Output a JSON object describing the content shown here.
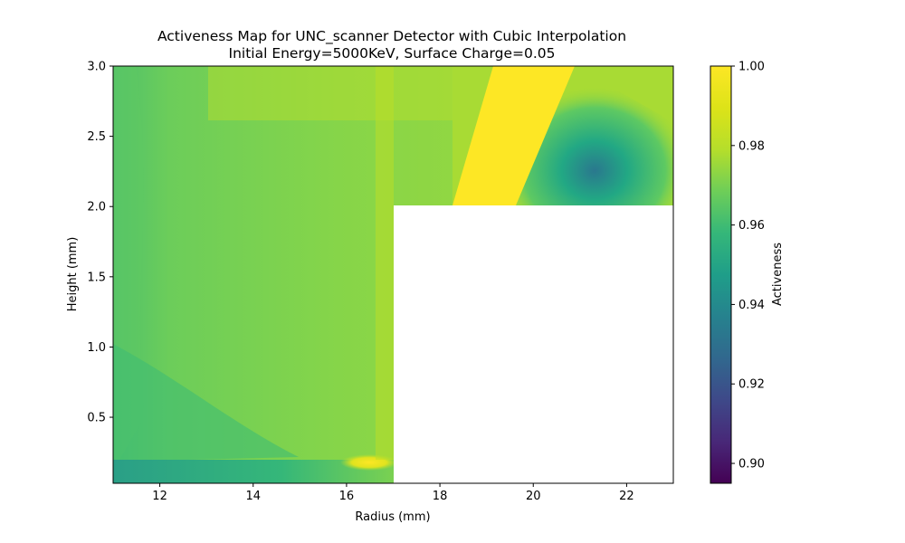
{
  "chart_data": {
    "type": "heatmap",
    "title": "Activeness Map for UNC_scanner Detector with Cubic Interpolation",
    "subtitle": "Initial Energy=5000KeV, Surface Charge=0.05",
    "xlabel": "Radius (mm)",
    "ylabel": "Height (mm)",
    "colorbar_label": "Activeness",
    "colormap": "viridis",
    "xlim": [
      11.0,
      23.0
    ],
    "ylim": [
      0.03,
      3.0
    ],
    "clim": [
      0.895,
      1.0
    ],
    "x_ticks": [
      12,
      14,
      16,
      18,
      20,
      22
    ],
    "x_tick_labels": [
      "12",
      "14",
      "16",
      "18",
      "20",
      "22"
    ],
    "y_ticks": [
      0.5,
      1.0,
      1.5,
      2.0,
      2.5,
      3.0
    ],
    "y_tick_labels": [
      "0.5",
      "1.0",
      "1.5",
      "2.0",
      "2.5",
      "3.0"
    ],
    "cbar_ticks": [
      0.9,
      0.92,
      0.94,
      0.96,
      0.98,
      1.0
    ],
    "cbar_tick_labels": [
      "0.90",
      "0.92",
      "0.94",
      "0.96",
      "0.98",
      "1.00"
    ],
    "masked_region": {
      "x": [
        17.0,
        23.0
      ],
      "y": [
        0.03,
        2.0
      ]
    },
    "regions": [
      {
        "description": "lower band",
        "x": [
          11.0,
          17.0
        ],
        "y": [
          0.03,
          0.15
        ],
        "value": 0.958
      },
      {
        "description": "left edge low",
        "x": [
          11.0,
          12.0
        ],
        "y": [
          0.15,
          1.2
        ],
        "value": 0.965
      },
      {
        "description": "bulk left",
        "x": [
          12.0,
          17.0
        ],
        "y": [
          0.15,
          2.0
        ],
        "value": 0.978
      },
      {
        "description": "near r=17 column",
        "x": [
          16.5,
          17.0
        ],
        "y": [
          0.3,
          2.0
        ],
        "value": 0.99
      },
      {
        "description": "hot spot",
        "x": [
          16.0,
          17.0
        ],
        "y": [
          0.1,
          0.25
        ],
        "value": 1.0
      },
      {
        "description": "top region",
        "x": [
          11.0,
          18.5
        ],
        "y": [
          2.0,
          3.0
        ],
        "value": 0.985
      },
      {
        "description": "yellow stripe",
        "x": [
          18.3,
          20.7
        ],
        "y": [
          2.0,
          3.0
        ],
        "value": 1.0
      },
      {
        "description": "dip near r=20.3, h=2.1",
        "x": [
          19.7,
          21.5
        ],
        "y": [
          2.0,
          2.3
        ],
        "value": 0.947
      },
      {
        "description": "upper right",
        "x": [
          20.7,
          23.0
        ],
        "y": [
          2.3,
          3.0
        ],
        "value": 0.985
      }
    ]
  }
}
